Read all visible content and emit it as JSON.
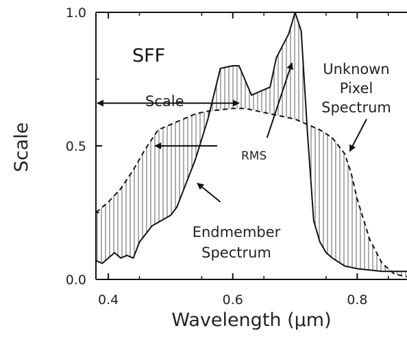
{
  "chart_data": {
    "type": "line",
    "xlabel": "Wavelength (μm)",
    "ylabel": "Scale",
    "xlim": [
      0.38,
      0.88
    ],
    "ylim": [
      0.0,
      1.0
    ],
    "x_ticks": [
      "0.4",
      "0.6",
      "0.8"
    ],
    "x_tick_values": [
      0.4,
      0.6,
      0.8
    ],
    "y_ticks": [
      "0.0",
      "0.5",
      "1.0"
    ],
    "y_tick_values": [
      0.0,
      0.5,
      1.0
    ],
    "grid": false,
    "series": [
      {
        "name": "Endmember Spectrum",
        "style": "solid",
        "x": [
          0.38,
          0.39,
          0.4,
          0.41,
          0.42,
          0.43,
          0.44,
          0.45,
          0.47,
          0.5,
          0.51,
          0.52,
          0.54,
          0.56,
          0.58,
          0.6,
          0.61,
          0.63,
          0.65,
          0.66,
          0.67,
          0.69,
          0.7,
          0.71,
          0.72,
          0.73,
          0.74,
          0.75,
          0.76,
          0.78,
          0.8,
          0.84,
          0.86,
          0.88
        ],
        "y": [
          0.07,
          0.06,
          0.08,
          0.1,
          0.08,
          0.09,
          0.08,
          0.14,
          0.2,
          0.24,
          0.27,
          0.33,
          0.45,
          0.6,
          0.79,
          0.8,
          0.8,
          0.69,
          0.71,
          0.72,
          0.83,
          0.92,
          1.0,
          0.93,
          0.55,
          0.22,
          0.14,
          0.1,
          0.08,
          0.05,
          0.04,
          0.03,
          0.03,
          0.03
        ]
      },
      {
        "name": "Unknown Pixel Spectrum",
        "style": "dashed",
        "x": [
          0.38,
          0.4,
          0.42,
          0.44,
          0.46,
          0.48,
          0.5,
          0.52,
          0.54,
          0.56,
          0.58,
          0.6,
          0.62,
          0.64,
          0.66,
          0.68,
          0.7,
          0.72,
          0.74,
          0.76,
          0.78,
          0.79,
          0.8,
          0.82,
          0.84,
          0.86,
          0.88
        ],
        "y": [
          0.25,
          0.29,
          0.34,
          0.41,
          0.49,
          0.56,
          0.58,
          0.6,
          0.62,
          0.63,
          0.635,
          0.64,
          0.64,
          0.63,
          0.62,
          0.61,
          0.6,
          0.58,
          0.56,
          0.53,
          0.47,
          0.4,
          0.3,
          0.15,
          0.06,
          0.02,
          0.01
        ]
      }
    ],
    "annotations": {
      "sff": "SFF",
      "scale": "Scale",
      "rms": "RMS",
      "unknown_line1": "Unknown",
      "unknown_line2": "Pixel",
      "unknown_line3": "Spectrum",
      "endmember_line1": "Endmember",
      "endmember_line2": "Spectrum"
    },
    "scale_arrow": {
      "x_from": 0.38,
      "x_to": 0.61,
      "y": 0.66
    },
    "rms_arrows": [
      {
        "x_from": 0.575,
        "y_from": 0.5,
        "x_to": 0.475,
        "y_to": 0.5
      },
      {
        "x_from": 0.655,
        "y_from": 0.53,
        "x_to": 0.695,
        "y_to": 0.81
      }
    ],
    "unknown_arrow": {
      "x_from": 0.815,
      "y_from": 0.6,
      "x_to": 0.788,
      "y_to": 0.48
    },
    "endmember_arrow": {
      "x_from": 0.58,
      "y_from": 0.29,
      "x_to": 0.543,
      "y_to": 0.36
    }
  }
}
